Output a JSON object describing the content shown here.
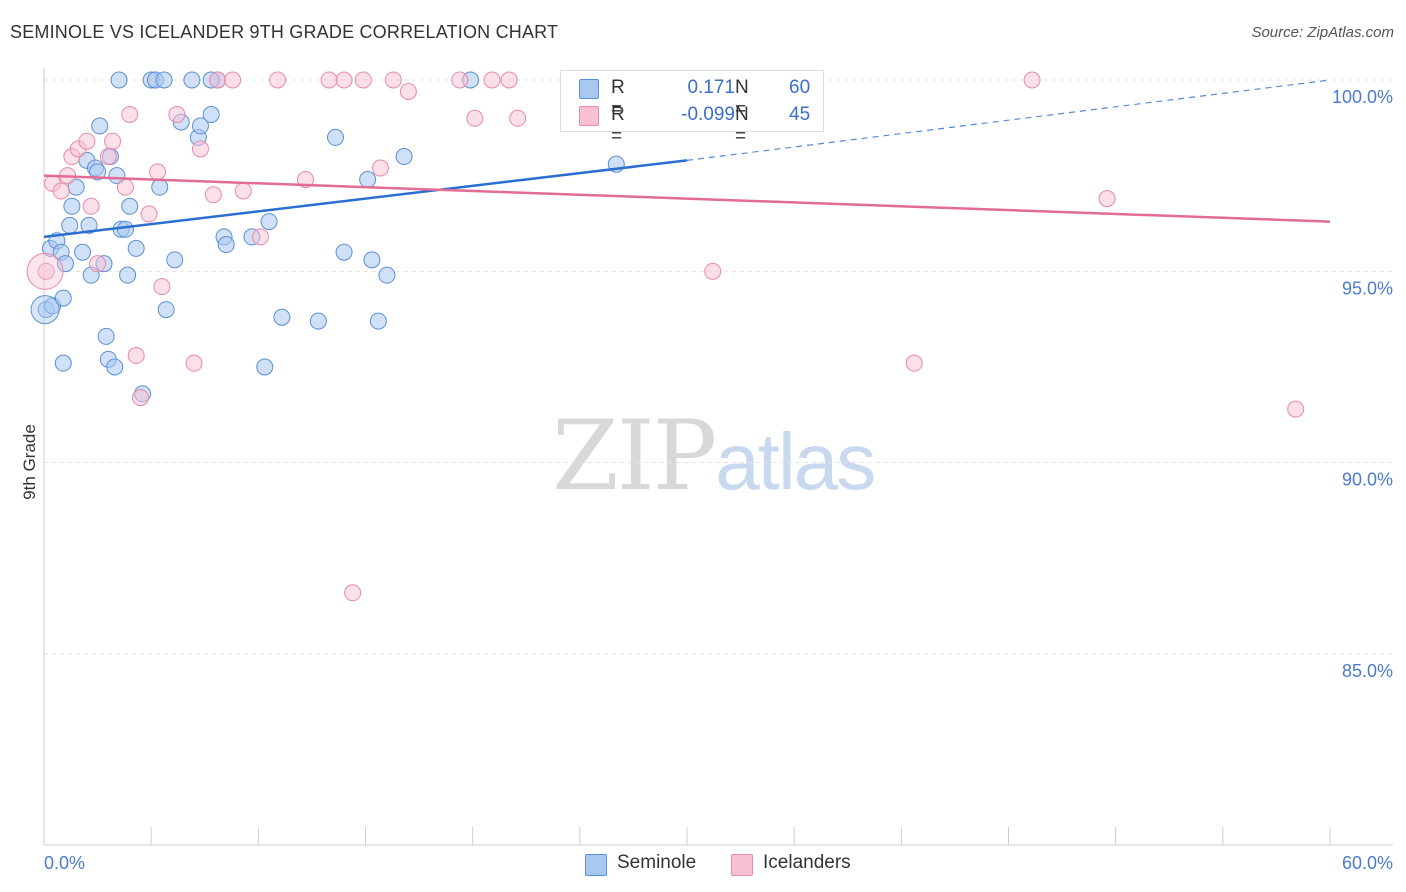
{
  "header": {
    "title": "SEMINOLE VS ICELANDER 9TH GRADE CORRELATION CHART",
    "source": "Source: ZipAtlas.com"
  },
  "watermark": {
    "zip": "ZIP",
    "atlas": "atlas"
  },
  "colors": {
    "seminole_fill": "#a9c8f0",
    "seminole_stroke": "#5a8fd8",
    "seminole_line": "#2a6fd0",
    "icelander_fill": "#f7c1d3",
    "icelander_stroke": "#e88aaa",
    "icelander_line": "#e26c93",
    "tick_text": "#4a7bd0"
  },
  "legend": {
    "rows": [
      {
        "series": "seminole",
        "r_label": "R =",
        "r_value": "0.171",
        "n_label": "N =",
        "n_value": "60"
      },
      {
        "series": "icelander",
        "r_label": "R =",
        "r_value": "-0.099",
        "n_label": "N =",
        "n_value": "45"
      }
    ]
  },
  "bottom_legend": {
    "seminole": "Seminole",
    "icelanders": "Icelanders"
  },
  "chart_data": {
    "type": "scatter",
    "title": "SEMINOLE VS ICELANDER 9TH GRADE CORRELATION CHART",
    "xlabel": "",
    "ylabel": "9th Grade",
    "xlim": [
      0,
      60
    ],
    "ylim": [
      80.5,
      101
    ],
    "x_tick_labels": [
      "0.0%",
      "60.0%"
    ],
    "y_ticks": [
      85,
      90,
      95,
      100
    ],
    "y_tick_labels": [
      "85.0%",
      "90.0%",
      "95.0%",
      "100.0%"
    ],
    "grid": true,
    "series": [
      {
        "name": "Seminole",
        "r": 0.171,
        "n": 60,
        "trend": {
          "x0": 0,
          "y0": 95.9,
          "x1": 30,
          "y1": 97.9,
          "dashed_to_x": 60,
          "dashed_to_y": 100.0
        },
        "points": [
          [
            0.1,
            94.0
          ],
          [
            0.3,
            95.6
          ],
          [
            0.4,
            94.1
          ],
          [
            0.6,
            95.8
          ],
          [
            0.8,
            95.5
          ],
          [
            0.9,
            94.3
          ],
          [
            1.0,
            95.2
          ],
          [
            1.2,
            96.2
          ],
          [
            1.3,
            96.7
          ],
          [
            1.5,
            97.2
          ],
          [
            1.8,
            95.5
          ],
          [
            2.0,
            97.9
          ],
          [
            2.1,
            96.2
          ],
          [
            2.2,
            94.9
          ],
          [
            2.4,
            97.7
          ],
          [
            2.6,
            98.8
          ],
          [
            2.8,
            95.2
          ],
          [
            3.0,
            92.7
          ],
          [
            3.1,
            98.0
          ],
          [
            3.3,
            92.5
          ],
          [
            3.4,
            97.5
          ],
          [
            3.6,
            96.1
          ],
          [
            3.9,
            94.9
          ],
          [
            4.0,
            96.7
          ],
          [
            4.3,
            95.6
          ],
          [
            4.6,
            91.8
          ],
          [
            5.0,
            100.0
          ],
          [
            5.2,
            100.0
          ],
          [
            5.4,
            97.2
          ],
          [
            5.6,
            100.0
          ],
          [
            5.7,
            94.0
          ],
          [
            6.1,
            95.3
          ],
          [
            6.4,
            98.9
          ],
          [
            6.9,
            100.0
          ],
          [
            7.2,
            98.5
          ],
          [
            7.3,
            98.8
          ],
          [
            7.8,
            99.1
          ],
          [
            8.1,
            100.0
          ],
          [
            8.4,
            95.9
          ],
          [
            8.5,
            95.7
          ],
          [
            9.7,
            95.9
          ],
          [
            10.3,
            92.5
          ],
          [
            10.5,
            96.3
          ],
          [
            11.1,
            93.8
          ],
          [
            12.8,
            93.7
          ],
          [
            13.6,
            98.5
          ],
          [
            14.0,
            95.5
          ],
          [
            15.1,
            97.4
          ],
          [
            15.3,
            95.3
          ],
          [
            15.6,
            93.7
          ],
          [
            16.0,
            94.9
          ],
          [
            16.8,
            98.0
          ],
          [
            19.9,
            100.0
          ],
          [
            26.7,
            97.8
          ],
          [
            0.9,
            92.6
          ],
          [
            3.5,
            100.0
          ],
          [
            7.8,
            100.0
          ],
          [
            2.5,
            97.6
          ],
          [
            3.8,
            96.1
          ],
          [
            2.9,
            93.3
          ]
        ]
      },
      {
        "name": "Icelanders",
        "r": -0.099,
        "n": 45,
        "trend": {
          "x0": 0,
          "y0": 97.5,
          "x1": 60,
          "y1": 96.3
        },
        "points": [
          [
            0.1,
            95.0
          ],
          [
            0.4,
            97.3
          ],
          [
            0.8,
            97.1
          ],
          [
            1.1,
            97.5
          ],
          [
            1.3,
            98.0
          ],
          [
            1.6,
            98.2
          ],
          [
            2.0,
            98.4
          ],
          [
            2.2,
            96.7
          ],
          [
            2.5,
            95.2
          ],
          [
            3.0,
            98.0
          ],
          [
            3.2,
            98.4
          ],
          [
            3.8,
            97.2
          ],
          [
            4.0,
            99.1
          ],
          [
            4.3,
            92.8
          ],
          [
            4.5,
            91.7
          ],
          [
            4.9,
            96.5
          ],
          [
            5.3,
            97.6
          ],
          [
            5.5,
            94.6
          ],
          [
            6.2,
            99.1
          ],
          [
            7.0,
            92.6
          ],
          [
            7.3,
            98.2
          ],
          [
            7.9,
            97.0
          ],
          [
            8.1,
            100.0
          ],
          [
            8.8,
            100.0
          ],
          [
            9.3,
            97.1
          ],
          [
            10.1,
            95.9
          ],
          [
            10.9,
            100.0
          ],
          [
            12.2,
            97.4
          ],
          [
            13.3,
            100.0
          ],
          [
            14.0,
            100.0
          ],
          [
            14.9,
            100.0
          ],
          [
            15.7,
            97.7
          ],
          [
            16.3,
            100.0
          ],
          [
            17.0,
            99.7
          ],
          [
            19.4,
            100.0
          ],
          [
            20.1,
            99.0
          ],
          [
            20.9,
            100.0
          ],
          [
            21.7,
            100.0
          ],
          [
            22.1,
            99.0
          ],
          [
            31.2,
            95.0
          ],
          [
            40.6,
            92.6
          ],
          [
            46.1,
            100.0
          ],
          [
            49.6,
            96.9
          ],
          [
            58.4,
            91.4
          ],
          [
            14.4,
            86.6
          ]
        ]
      }
    ]
  }
}
